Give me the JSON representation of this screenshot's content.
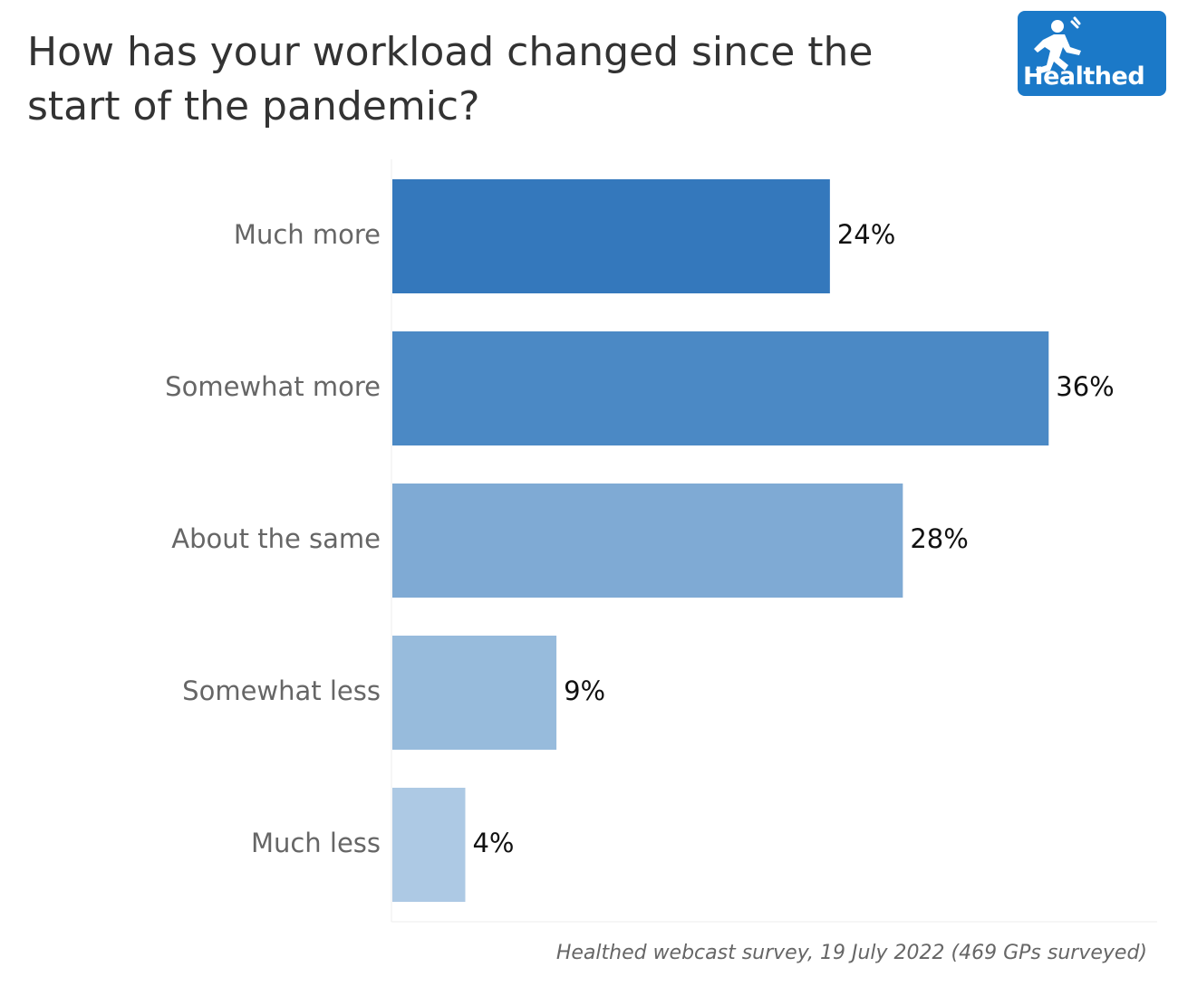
{
  "chart_data": {
    "type": "bar",
    "orientation": "horizontal",
    "title": "How has your workload changed since the start of the pandemic?",
    "categories": [
      "Much more",
      "Somewhat more",
      "About the same",
      "Somewhat less",
      "Much less"
    ],
    "values": [
      24,
      36,
      28,
      9,
      4
    ],
    "value_labels": [
      "24%",
      "36%",
      "28%",
      "9%",
      "4%"
    ],
    "colors": [
      "#3478bc",
      "#4b89c5",
      "#7faad4",
      "#97bbdc",
      "#adc9e4"
    ],
    "xlim": [
      0,
      42
    ],
    "unit": "%",
    "grid": false,
    "legend": "none"
  },
  "logo": {
    "text": "Healthed",
    "icon": "running-figure-icon"
  },
  "footer": {
    "source": "Healthed webcast survey, 19 July 2022 (469 GPs surveyed)"
  }
}
